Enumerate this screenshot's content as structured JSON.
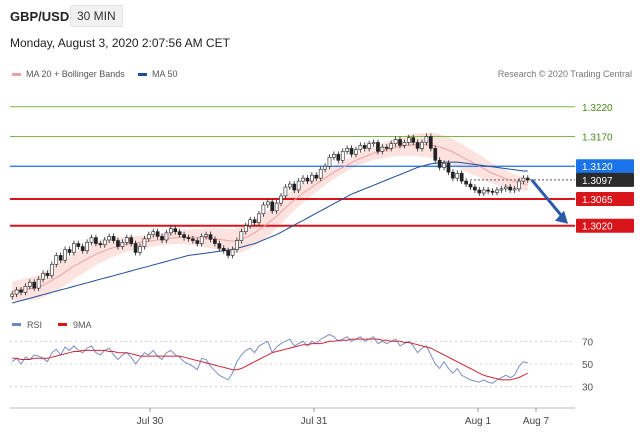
{
  "header": {
    "pair": "GBP/USD",
    "timeframe": "30 MIN",
    "datetime": "Monday, August 3, 2020 2:07:56 AM CET"
  },
  "legend": {
    "ma20": "MA 20 + Bollinger Bands",
    "ma50": "MA 50",
    "credit": "Research © 2020 Trading Central"
  },
  "colors": {
    "ma20": "#f0a0a0",
    "band": "#fcd7d3",
    "ma50": "#1f4e99",
    "resistance": "#1a73e8",
    "support": "#d9141a",
    "target": "#7ab648",
    "candle_up": "#ffffff",
    "candle_down": "#222222"
  },
  "chart_data": [
    {
      "type": "candlestick",
      "ylim": [
        1.2885,
        1.3265
      ],
      "x_tick_labels": [
        "Jul 30",
        "Jul 31",
        "Aug 1",
        "Aug 7"
      ],
      "levels": [
        {
          "value": 1.322,
          "label": "1.3220",
          "kind": "target"
        },
        {
          "value": 1.317,
          "label": "1.3170",
          "kind": "target"
        },
        {
          "value": 1.312,
          "label": "1.3120",
          "kind": "resistance"
        },
        {
          "value": 1.3097,
          "label": "1.3097",
          "kind": "last"
        },
        {
          "value": 1.3065,
          "label": "1.3065",
          "kind": "support"
        },
        {
          "value": 1.302,
          "label": "1.3020",
          "kind": "support"
        }
      ],
      "close": [
        1.2905,
        1.2912,
        1.2908,
        1.2918,
        1.2925,
        1.2915,
        1.293,
        1.294,
        1.2936,
        1.2955,
        1.297,
        1.2962,
        1.298,
        1.2975,
        1.299,
        1.2985,
        1.2978,
        1.2992,
        1.3,
        1.299,
        1.2988,
        1.2996,
        1.3002,
        1.2995,
        1.2985,
        1.2992,
        1.3,
        1.299,
        1.2975,
        1.2985,
        1.2998,
        1.3005,
        1.301,
        1.3002,
        1.2996,
        1.3008,
        1.3015,
        1.301,
        1.3005,
        1.3,
        1.2998,
        1.2995,
        1.299,
        1.3002,
        1.3005,
        1.2997,
        1.299,
        1.2982,
        1.2978,
        1.297,
        1.298,
        1.2995,
        1.301,
        1.302,
        1.303,
        1.3025,
        1.304,
        1.3055,
        1.306,
        1.3045,
        1.3058,
        1.307,
        1.3085,
        1.309,
        1.308,
        1.3095,
        1.31,
        1.3095,
        1.3105,
        1.31,
        1.3115,
        1.312,
        1.3135,
        1.314,
        1.313,
        1.3145,
        1.315,
        1.314,
        1.3148,
        1.3155,
        1.315,
        1.3158,
        1.316,
        1.3145,
        1.3152,
        1.315,
        1.3158,
        1.3165,
        1.3155,
        1.316,
        1.3168,
        1.316,
        1.315,
        1.316,
        1.317,
        1.315,
        1.313,
        1.3118,
        1.3125,
        1.311,
        1.31,
        1.3108,
        1.3095,
        1.309,
        1.3085,
        1.308,
        1.3075,
        1.308,
        1.3078,
        1.3076,
        1.308,
        1.3082,
        1.3085,
        1.308,
        1.3082,
        1.3095,
        1.31,
        1.3097
      ],
      "ma20": [
        1.291,
        1.2911,
        1.2912,
        1.2913,
        1.2914,
        1.2915,
        1.2917,
        1.292,
        1.2924,
        1.2928,
        1.2933,
        1.2937,
        1.2942,
        1.2947,
        1.2952,
        1.2956,
        1.296,
        1.2964,
        1.2968,
        1.2972,
        1.2975,
        1.2978,
        1.2981,
        1.2983,
        1.2985,
        1.2987,
        1.2989,
        1.299,
        1.2991,
        1.2992,
        1.2993,
        1.2994,
        1.2995,
        1.2996,
        1.2997,
        1.2998,
        1.2999,
        1.3,
        1.3001,
        1.3001,
        1.3001,
        1.3001,
        1.3,
        1.3,
        1.3,
        1.2999,
        1.2998,
        1.2997,
        1.2996,
        1.2995,
        1.2994,
        1.2995,
        1.2997,
        1.3,
        1.3004,
        1.3008,
        1.3013,
        1.3018,
        1.3024,
        1.303,
        1.3036,
        1.3043,
        1.305,
        1.3057,
        1.3063,
        1.3069,
        1.3075,
        1.308,
        1.3085,
        1.309,
        1.3095,
        1.31,
        1.3105,
        1.311,
        1.3114,
        1.3118,
        1.3122,
        1.3126,
        1.313,
        1.3133,
        1.3136,
        1.3139,
        1.3142,
        1.3144,
        1.3146,
        1.3148,
        1.315,
        1.3152,
        1.3153,
        1.3154,
        1.3155,
        1.3156,
        1.3156,
        1.3156,
        1.3156,
        1.3155,
        1.3154,
        1.3152,
        1.315,
        1.3147,
        1.3144,
        1.314,
        1.3136,
        1.3132,
        1.3128,
        1.3124,
        1.312,
        1.3116,
        1.3112,
        1.3108,
        1.3105,
        1.3102,
        1.3099,
        1.3096,
        1.3094,
        1.3092,
        1.309,
        1.309
      ],
      "ma50": [
        1.289,
        1.2892,
        1.2894,
        1.2896,
        1.2898,
        1.29,
        1.2902,
        1.2904,
        1.2906,
        1.2908,
        1.291,
        1.2912,
        1.2914,
        1.2916,
        1.2918,
        1.292,
        1.2922,
        1.2924,
        1.2926,
        1.2928,
        1.293,
        1.2932,
        1.2934,
        1.2936,
        1.2938,
        1.294,
        1.2942,
        1.2944,
        1.2946,
        1.2948,
        1.295,
        1.2952,
        1.2954,
        1.2956,
        1.2958,
        1.296,
        1.2962,
        1.2964,
        1.2966,
        1.2968,
        1.297,
        1.2971,
        1.2972,
        1.2973,
        1.2974,
        1.2975,
        1.2976,
        1.2977,
        1.2978,
        1.2979,
        1.298,
        1.2982,
        1.2984,
        1.2986,
        1.2988,
        1.299,
        1.2993,
        1.2996,
        1.2999,
        1.3002,
        1.3005,
        1.3009,
        1.3013,
        1.3017,
        1.3021,
        1.3025,
        1.3029,
        1.3033,
        1.3037,
        1.3041,
        1.3045,
        1.3049,
        1.3053,
        1.3057,
        1.3061,
        1.3065,
        1.3069,
        1.3073,
        1.3076,
        1.3079,
        1.3082,
        1.3085,
        1.3088,
        1.3091,
        1.3094,
        1.3097,
        1.31,
        1.3103,
        1.3106,
        1.3109,
        1.3112,
        1.3115,
        1.3118,
        1.312,
        1.3122,
        1.3124,
        1.3125,
        1.3126,
        1.3127,
        1.3127,
        1.3127,
        1.3127,
        1.3126,
        1.3125,
        1.3124,
        1.3123,
        1.3122,
        1.3121,
        1.312,
        1.3119,
        1.3118,
        1.3117,
        1.3116,
        1.3115,
        1.3114,
        1.3113,
        1.3112,
        1.3112
      ],
      "projection": {
        "from": 1.3097,
        "to": 1.302
      }
    },
    {
      "type": "line",
      "legend": [
        "RSI",
        "9MA"
      ],
      "ylim": [
        20,
        80
      ],
      "y_tick_labels": [
        "70",
        "50",
        "30"
      ],
      "y_ticks": [
        70,
        50,
        30
      ],
      "rsi": [
        52,
        55,
        50,
        56,
        54,
        58,
        57,
        55,
        52,
        60,
        63,
        58,
        65,
        62,
        66,
        62,
        60,
        64,
        66,
        60,
        58,
        62,
        64,
        58,
        54,
        58,
        60,
        56,
        50,
        55,
        60,
        58,
        62,
        57,
        54,
        60,
        62,
        58,
        56,
        52,
        50,
        48,
        45,
        55,
        54,
        48,
        44,
        40,
        38,
        36,
        42,
        52,
        58,
        62,
        64,
        60,
        66,
        68,
        70,
        60,
        65,
        68,
        70,
        72,
        66,
        68,
        70,
        66,
        70,
        68,
        72,
        74,
        76,
        74,
        70,
        72,
        74,
        70,
        72,
        74,
        70,
        72,
        74,
        68,
        70,
        68,
        70,
        72,
        66,
        68,
        70,
        66,
        60,
        64,
        66,
        58,
        50,
        46,
        52,
        46,
        42,
        46,
        40,
        38,
        36,
        35,
        34,
        36,
        34,
        33,
        36,
        38,
        40,
        38,
        40,
        48,
        52,
        51
      ],
      "ma9": [
        55,
        55,
        54,
        54,
        54,
        55,
        55,
        55,
        55,
        56,
        57,
        58,
        59,
        60,
        61,
        61,
        62,
        62,
        62,
        62,
        62,
        62,
        61,
        61,
        60,
        60,
        60,
        59,
        58,
        57,
        57,
        57,
        57,
        57,
        57,
        57,
        57,
        57,
        57,
        56,
        55,
        54,
        53,
        52,
        51,
        50,
        49,
        48,
        47,
        46,
        45,
        45,
        46,
        48,
        50,
        52,
        54,
        56,
        58,
        60,
        61,
        62,
        63,
        64,
        65,
        66,
        67,
        67,
        68,
        68,
        68,
        69,
        70,
        70,
        71,
        71,
        71,
        72,
        72,
        72,
        72,
        72,
        72,
        72,
        71,
        71,
        70,
        70,
        70,
        69,
        69,
        68,
        67,
        66,
        65,
        64,
        62,
        60,
        58,
        56,
        54,
        52,
        50,
        48,
        46,
        44,
        42,
        40,
        39,
        38,
        37,
        36,
        36,
        36,
        37,
        38,
        40,
        42
      ]
    }
  ]
}
